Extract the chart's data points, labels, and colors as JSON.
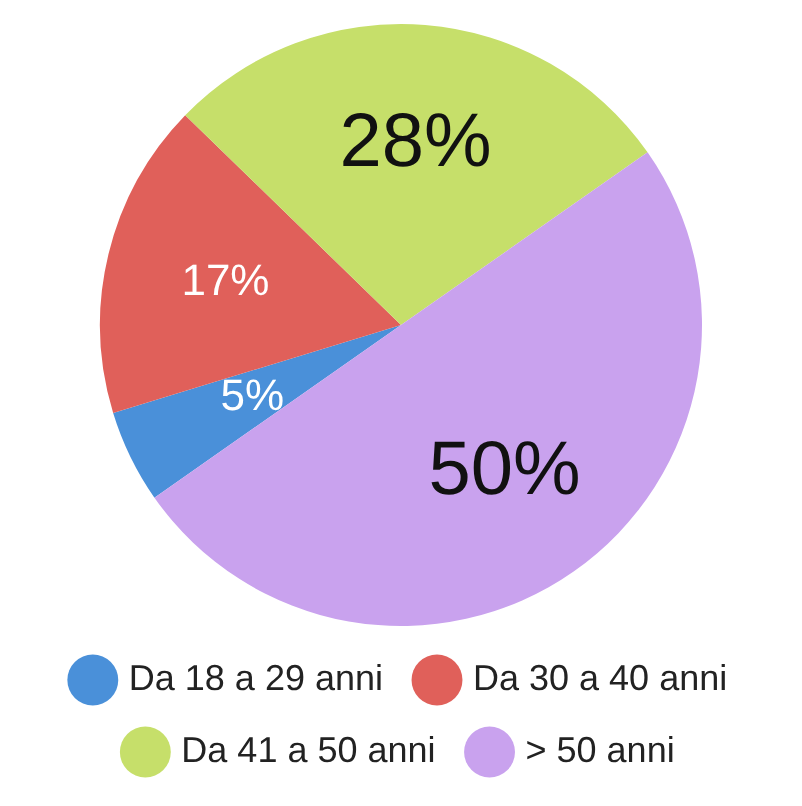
{
  "chart_data": {
    "type": "pie",
    "categories": [
      "Da 18 a 29 anni",
      "Da 30 a 40 anni",
      "Da 41 a 50 anni",
      "> 50 anni"
    ],
    "values": [
      5,
      17,
      28,
      50
    ],
    "colors": [
      "#4a90d9",
      "#e0605a",
      "#c6df6a",
      "#c9a2ee"
    ],
    "value_labels": [
      "5%",
      "17%",
      "28%",
      "50%"
    ],
    "legend": "bottom"
  }
}
